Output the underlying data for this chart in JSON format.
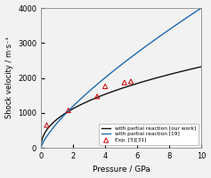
{
  "title": "",
  "xlabel": "Pressure / GPa",
  "ylabel": "Shock velocity / m·s⁻¹",
  "xlim": [
    0,
    10
  ],
  "ylim": [
    0,
    4000
  ],
  "xticks": [
    0,
    2,
    4,
    6,
    8,
    10
  ],
  "yticks": [
    0,
    1000,
    2000,
    3000,
    4000
  ],
  "legend": [
    "with partial reaction [our work]",
    "with partial reaction [19]",
    "Exp. [5][31]"
  ],
  "line_black_color": "#111111",
  "line_blue_color": "#1E6BB0",
  "exp_color": "#CC0000",
  "exp_points_x": [
    0.35,
    1.7,
    3.5,
    4.0,
    5.2,
    5.6
  ],
  "exp_points_y": [
    650,
    1070,
    1470,
    1760,
    1870,
    1900
  ],
  "background_color": "#f2f2f2"
}
